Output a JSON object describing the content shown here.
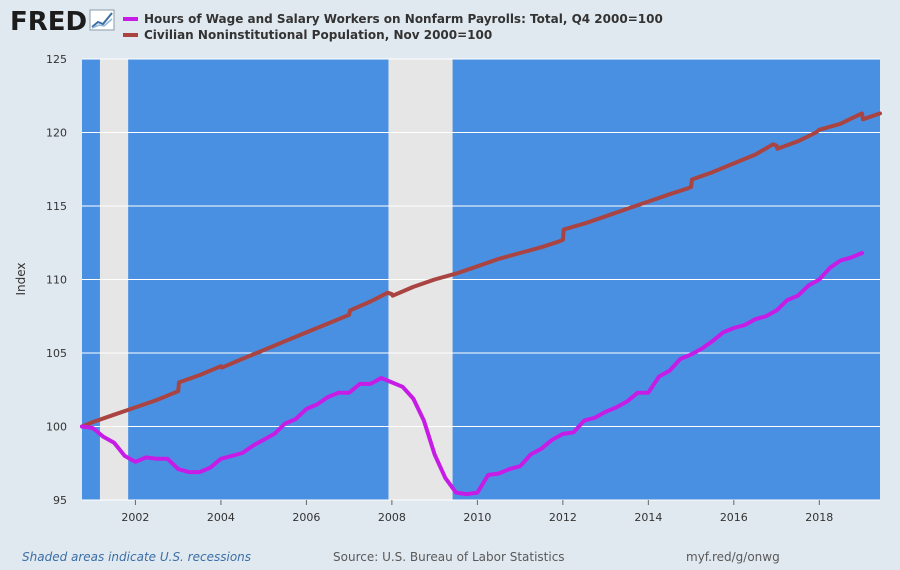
{
  "header": {
    "logo_text": "FRED",
    "logo_icon": "line-chart-icon"
  },
  "footer": {
    "recession_note": "Shaded areas indicate U.S. recessions",
    "source": "Source: U.S. Bureau of Labor Statistics",
    "link": "myf.red/g/onwg"
  },
  "colors": {
    "page_background": "#e1e9f0",
    "plot_background": "#4a90e2",
    "recession_shade": "#e6e6e6",
    "series_1": "#c61ce6",
    "series_2": "#a94442"
  },
  "chart_data": {
    "type": "line",
    "title": "",
    "xlabel": "",
    "ylabel": "Index",
    "x_range": [
      2000.75,
      2019.42
    ],
    "ylim": [
      95,
      125
    ],
    "yticks": [
      95,
      100,
      105,
      110,
      115,
      120,
      125
    ],
    "xticks": [
      2002,
      2004,
      2006,
      2008,
      2010,
      2012,
      2014,
      2016,
      2018
    ],
    "grid": true,
    "legend_position": "top-left",
    "recessions": [
      {
        "start": 2001.17,
        "end": 2001.83
      },
      {
        "start": 2007.92,
        "end": 2009.42
      }
    ],
    "series": [
      {
        "name": "Hours of Wage and Salary Workers on Nonfarm Payrolls: Total, Q4 2000=100",
        "color": "#c61ce6",
        "x": [
          2000.75,
          2001.0,
          2001.25,
          2001.5,
          2001.75,
          2002.0,
          2002.25,
          2002.5,
          2002.75,
          2003.0,
          2003.25,
          2003.5,
          2003.75,
          2004.0,
          2004.25,
          2004.5,
          2004.75,
          2005.0,
          2005.25,
          2005.5,
          2005.75,
          2006.0,
          2006.25,
          2006.5,
          2006.75,
          2007.0,
          2007.25,
          2007.5,
          2007.75,
          2008.0,
          2008.25,
          2008.5,
          2008.75,
          2009.0,
          2009.25,
          2009.5,
          2009.75,
          2010.0,
          2010.25,
          2010.5,
          2010.75,
          2011.0,
          2011.25,
          2011.5,
          2011.75,
          2012.0,
          2012.25,
          2012.5,
          2012.75,
          2013.0,
          2013.25,
          2013.5,
          2013.75,
          2014.0,
          2014.25,
          2014.5,
          2014.75,
          2015.0,
          2015.25,
          2015.5,
          2015.75,
          2016.0,
          2016.25,
          2016.5,
          2016.75,
          2017.0,
          2017.25,
          2017.5,
          2017.75,
          2018.0,
          2018.25,
          2018.5,
          2018.75,
          2019.0
        ],
        "values": [
          100.0,
          99.9,
          99.3,
          98.9,
          98.0,
          97.6,
          97.9,
          97.8,
          97.8,
          97.1,
          96.9,
          96.9,
          97.2,
          97.8,
          98.0,
          98.2,
          98.7,
          99.1,
          99.5,
          100.2,
          100.5,
          101.2,
          101.5,
          102.0,
          102.3,
          102.3,
          102.9,
          102.9,
          103.3,
          103.0,
          102.7,
          101.9,
          100.4,
          98.1,
          96.5,
          95.5,
          95.4,
          95.5,
          96.7,
          96.8,
          97.1,
          97.3,
          98.1,
          98.5,
          99.1,
          99.5,
          99.6,
          100.4,
          100.6,
          101.0,
          101.3,
          101.7,
          102.3,
          102.3,
          103.4,
          103.8,
          104.6,
          104.9,
          105.3,
          105.8,
          106.4,
          106.7,
          106.9,
          107.3,
          107.5,
          107.9,
          108.6,
          108.9,
          109.6,
          110.0,
          110.8,
          111.3,
          111.5,
          111.8
        ]
      },
      {
        "name": "Civilian Noninstitutional Population, Nov 2000=100",
        "color": "#a94442",
        "x": [
          2000.75,
          2001.0,
          2001.5,
          2002.0,
          2002.5,
          2003.0,
          2003.02,
          2003.5,
          2004.0,
          2004.02,
          2004.5,
          2005.0,
          2005.5,
          2006.0,
          2006.5,
          2007.0,
          2007.02,
          2007.5,
          2007.9,
          2008.0,
          2008.02,
          2008.5,
          2009.0,
          2009.5,
          2010.0,
          2010.5,
          2011.0,
          2011.5,
          2011.92,
          2012.0,
          2012.02,
          2012.5,
          2013.0,
          2013.5,
          2014.0,
          2014.5,
          2014.92,
          2015.0,
          2015.02,
          2015.5,
          2016.0,
          2016.5,
          2016.92,
          2017.0,
          2017.02,
          2017.5,
          2017.92,
          2018.0,
          2018.02,
          2018.5,
          2018.92,
          2019.0,
          2019.02,
          2019.42
        ],
        "values": [
          100.0,
          100.3,
          100.8,
          101.3,
          101.8,
          102.4,
          103.0,
          103.5,
          104.1,
          104.0,
          104.6,
          105.2,
          105.8,
          106.4,
          107.0,
          107.6,
          107.9,
          108.5,
          109.1,
          109.0,
          108.9,
          109.5,
          110.0,
          110.4,
          110.9,
          111.4,
          111.8,
          112.2,
          112.6,
          112.7,
          113.4,
          113.8,
          114.3,
          114.8,
          115.3,
          115.8,
          116.2,
          116.3,
          116.8,
          117.3,
          117.9,
          118.5,
          119.2,
          119.1,
          118.9,
          119.4,
          120.0,
          120.2,
          120.2,
          120.6,
          121.2,
          121.3,
          120.9,
          121.3
        ]
      }
    ]
  }
}
